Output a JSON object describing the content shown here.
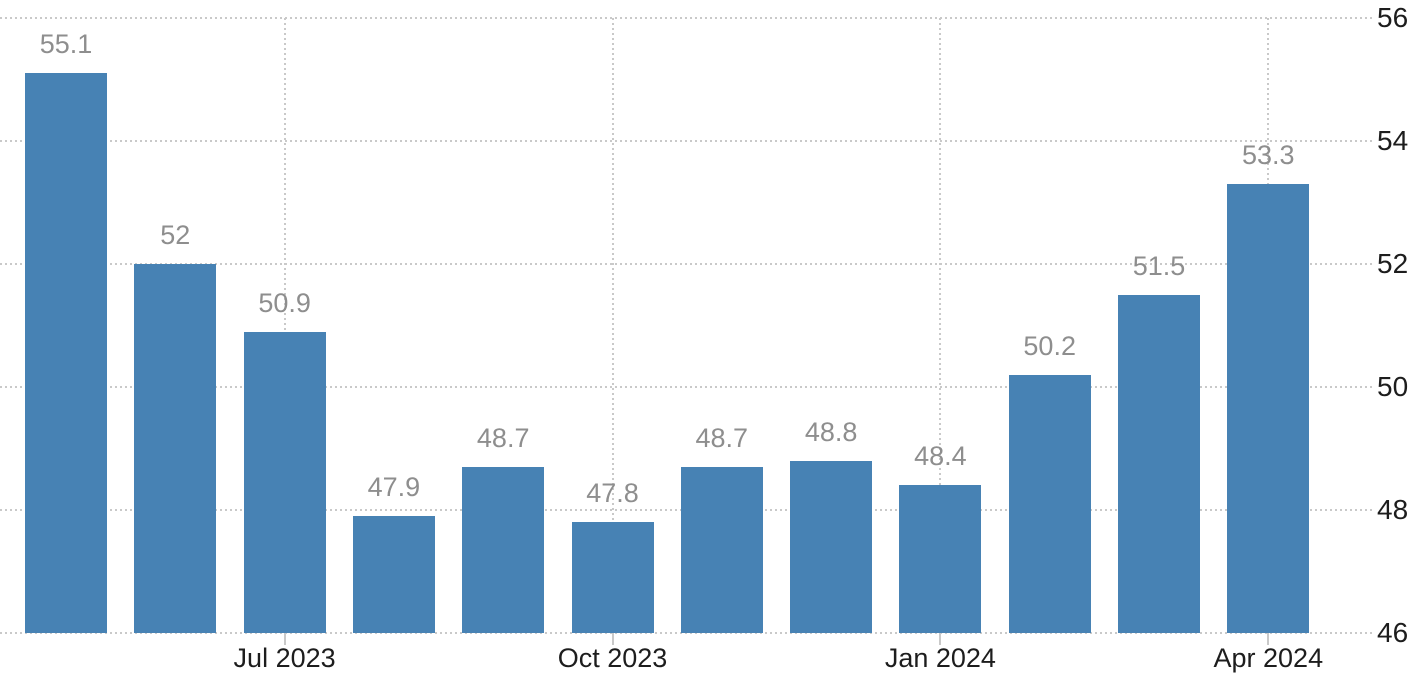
{
  "chart_data": {
    "type": "bar",
    "title": "",
    "values": [
      55.1,
      52,
      50.9,
      47.9,
      48.7,
      47.8,
      48.7,
      48.8,
      48.4,
      50.2,
      51.5,
      53.3
    ],
    "value_labels": [
      "55.1",
      "52",
      "50.9",
      "47.9",
      "48.7",
      "47.8",
      "48.7",
      "48.8",
      "48.4",
      "50.2",
      "51.5",
      "53.3"
    ],
    "x_ticks": [
      {
        "label": "Jul 2023",
        "bar_index": 2
      },
      {
        "label": "Oct 2023",
        "bar_index": 5
      },
      {
        "label": "Jan 2024",
        "bar_index": 8
      },
      {
        "label": "Apr 2024",
        "bar_index": 11
      }
    ],
    "y_ticks": [
      "56",
      "54",
      "52",
      "50",
      "48",
      "46"
    ],
    "y_tick_values": [
      56,
      54,
      52,
      50,
      48,
      46
    ],
    "ylim": [
      46,
      56
    ],
    "xlabel": "",
    "ylabel": "",
    "grid": true,
    "legend": null,
    "y_axis_position": "right",
    "colors": {
      "bar": "#4782b4",
      "grid": "#c9c9c9",
      "value_label": "#8e8e8e",
      "axis_text": "#1d1d1d",
      "background": "#ffffff"
    }
  }
}
